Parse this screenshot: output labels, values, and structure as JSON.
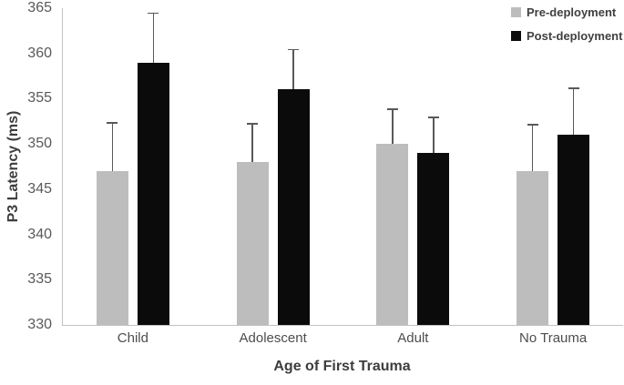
{
  "chart_data": {
    "type": "bar",
    "categories": [
      "Child",
      "Adolescent",
      "Adult",
      "No Trauma"
    ],
    "series": [
      {
        "name": "Pre-deployment",
        "color": "#bdbdbd",
        "values": [
          347,
          348,
          350,
          347
        ],
        "upper_errors": [
          5.3,
          4.2,
          3.8,
          5.1
        ]
      },
      {
        "name": "Post-deployment",
        "color": "#0b0b0b",
        "values": [
          359,
          356,
          349,
          351
        ],
        "upper_errors": [
          5.4,
          4.4,
          3.9,
          5.1
        ]
      }
    ],
    "xlabel": "Age of First Trauma",
    "ylabel": "P3 Latency (ms)",
    "ylim": [
      330,
      365
    ],
    "yticks": [
      330,
      335,
      340,
      345,
      350,
      355,
      360,
      365
    ],
    "legend_position": "top-right",
    "grid": false,
    "error_bar_color": "#595959",
    "axis_line_color": "#c3c3c3",
    "background_color": "#ffffff"
  }
}
